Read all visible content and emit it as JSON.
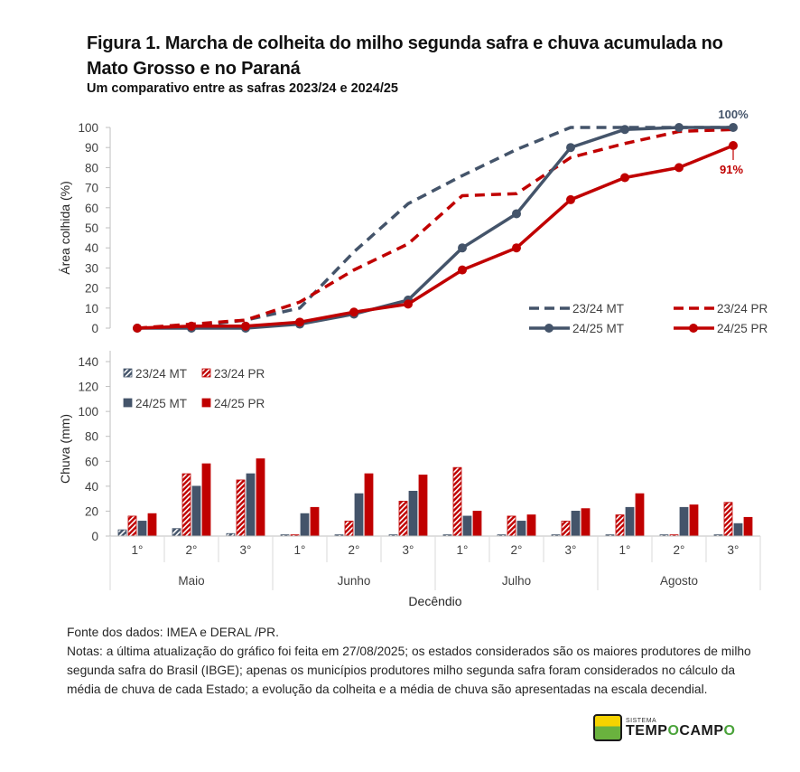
{
  "header": {
    "title": "Figura 1. Marcha de colheita do milho segunda safra e chuva acumulada no Mato Grosso e no Paraná",
    "subtitle": "Um comparativo entre as safras 2023/24 e 2024/25"
  },
  "colors": {
    "mt": "#44546A",
    "pr": "#C00000",
    "grid": "#d9d9d9",
    "axis": "#bfbfbf"
  },
  "chart_data": [
    {
      "type": "line",
      "title": "Área colhida",
      "ylabel": "Área colhida (%)",
      "xlabel": "",
      "ylim": [
        0,
        100
      ],
      "yticks": [
        0,
        10,
        20,
        30,
        40,
        50,
        60,
        70,
        80,
        90,
        100
      ],
      "grid": false,
      "categories": [
        "Maio 1°",
        "Maio 2°",
        "Maio 3°",
        "Junho 1°",
        "Junho 2°",
        "Junho 3°",
        "Julho 1°",
        "Julho 2°",
        "Julho 3°",
        "Agosto 1°",
        "Agosto 2°",
        "Agosto 3°"
      ],
      "series": [
        {
          "name": "23/24 MT",
          "color": "#44546A",
          "style": "dashed",
          "markers": false,
          "values": [
            0,
            1,
            4,
            10,
            38,
            62,
            76,
            89,
            100,
            100,
            100,
            100
          ]
        },
        {
          "name": "23/24 PR",
          "color": "#C00000",
          "style": "dashed",
          "markers": false,
          "values": [
            0,
            2,
            4,
            13,
            29,
            42,
            66,
            67,
            85,
            92,
            98,
            99
          ]
        },
        {
          "name": "24/25 MT",
          "color": "#44546A",
          "style": "solid",
          "markers": true,
          "values": [
            0,
            0,
            0,
            2,
            7,
            14,
            40,
            57,
            90,
            99,
            100,
            100
          ]
        },
        {
          "name": "24/25 PR",
          "color": "#C00000",
          "style": "solid",
          "markers": true,
          "values": [
            0,
            1,
            1,
            3,
            8,
            12,
            29,
            40,
            64,
            75,
            80,
            91
          ]
        }
      ],
      "annotations": [
        {
          "series": "24/25 MT",
          "index": 11,
          "text": "100%",
          "color": "#44546A"
        },
        {
          "series": "24/25 PR",
          "index": 11,
          "text": "91%",
          "color": "#C00000"
        }
      ],
      "legend": "bottom-right"
    },
    {
      "type": "bar",
      "title": "Chuva",
      "ylabel": "Chuva (mm)",
      "xlabel": "Decêndio",
      "ylim": [
        0,
        140
      ],
      "yticks": [
        0,
        20,
        40,
        60,
        80,
        100,
        120,
        140
      ],
      "grid": false,
      "categories": [
        "1°",
        "2°",
        "3°",
        "1°",
        "2°",
        "3°",
        "1°",
        "2°",
        "3°",
        "1°",
        "2°",
        "3°"
      ],
      "groups": [
        "Maio",
        "Junho",
        "Julho",
        "Agosto"
      ],
      "series": [
        {
          "name": "23/24 MT",
          "color": "#44546A",
          "pattern": "hatched",
          "values": [
            5,
            6,
            2,
            1,
            1,
            1,
            1,
            1,
            1,
            1,
            1,
            1
          ]
        },
        {
          "name": "23/24 PR",
          "color": "#C00000",
          "pattern": "hatched",
          "values": [
            16,
            50,
            45,
            1,
            12,
            28,
            55,
            16,
            12,
            17,
            1,
            27
          ]
        },
        {
          "name": "24/25 MT",
          "color": "#44546A",
          "pattern": "solid",
          "values": [
            12,
            40,
            50,
            18,
            34,
            36,
            16,
            12,
            20,
            23,
            23,
            10
          ]
        },
        {
          "name": "24/25 PR",
          "color": "#C00000",
          "pattern": "solid",
          "values": [
            18,
            58,
            62,
            23,
            50,
            49,
            20,
            17,
            22,
            34,
            25,
            15
          ]
        }
      ],
      "legend": "top-left"
    }
  ],
  "footer": {
    "source": "Fonte dos dados: IMEA e DERAL /PR.",
    "notes": "Notas: a última atualização do gráfico foi feita em 27/08/2025; os estados considerados são os maiores produtores de milho segunda safra do Brasil (IBGE); apenas os municípios produtores milho segunda safra foram considerados no cálculo da média de chuva de cada Estado; a evolução da colheita e a média de chuva são apresentadas na escala decendial."
  },
  "logo": {
    "small": "SISTEMA",
    "big_part1": "TEMP",
    "big_o1": "O",
    "big_part2": "CAMP",
    "big_o2": "O"
  }
}
